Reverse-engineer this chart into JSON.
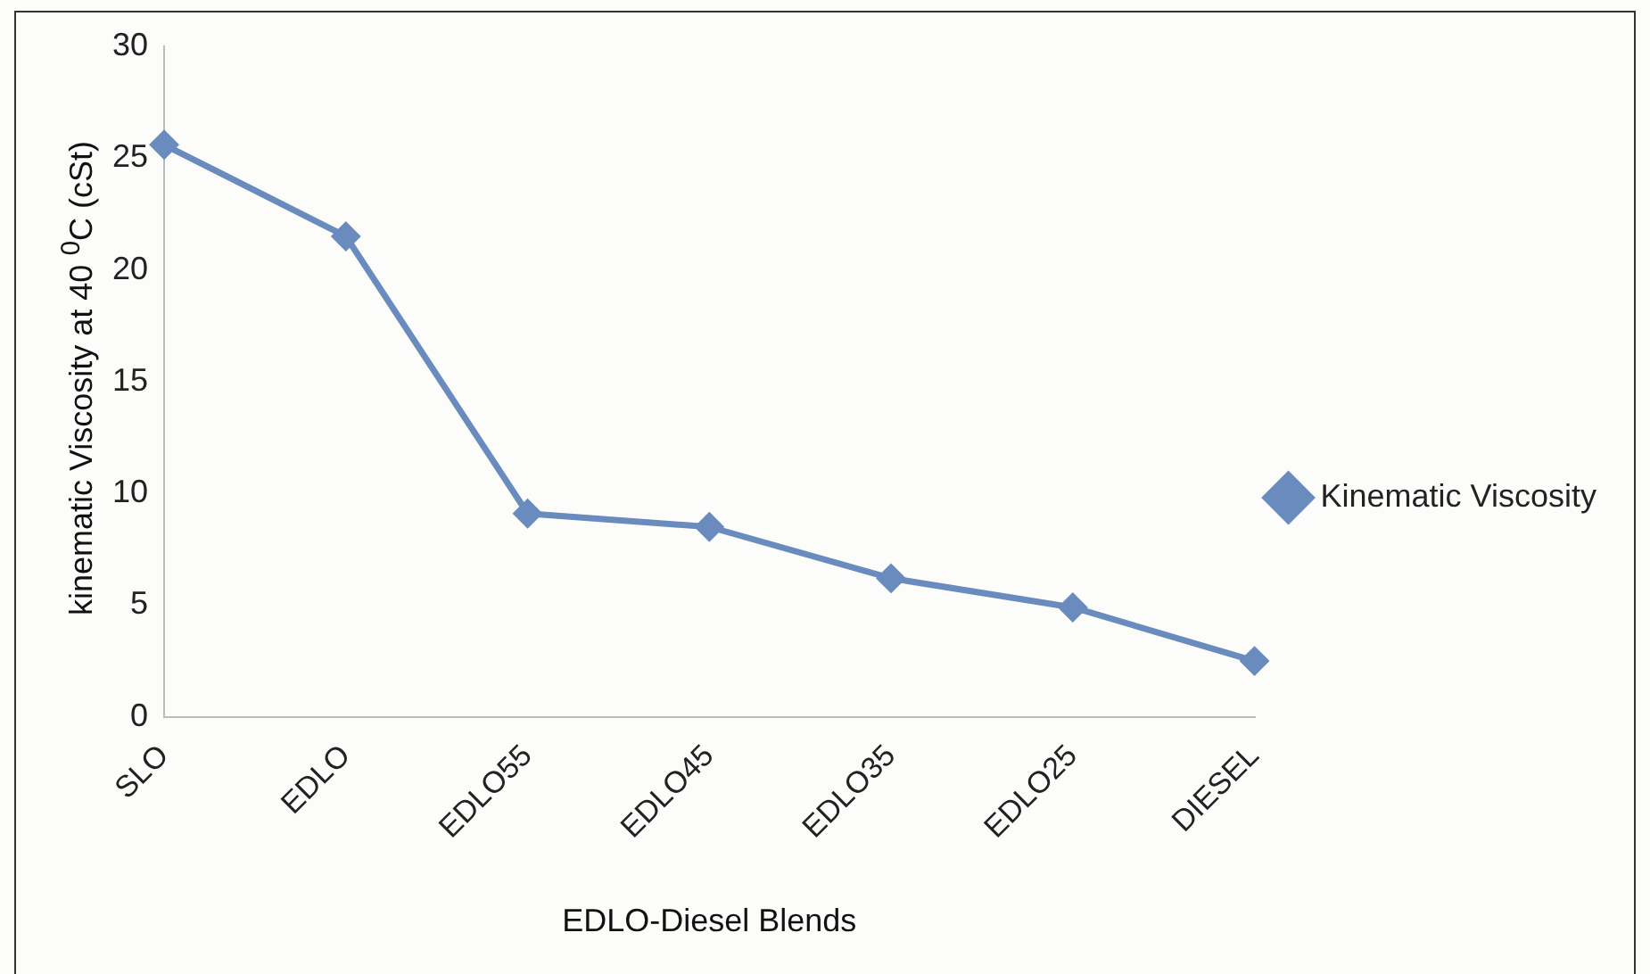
{
  "chart_data": {
    "type": "line",
    "xlabel": "EDLO-Diesel Blends",
    "ylabel": "kinematic Viscosity at 40 $^{0}$C (cSt)",
    "categories": [
      "SLO",
      "EDLO",
      "EDLO55",
      "EDLO45",
      "EDLO35",
      "EDLO25",
      "DIESEL"
    ],
    "series": [
      {
        "name": "Kinematic Viscosity",
        "color": "#6a8bbd",
        "values": [
          25.6,
          21.5,
          9.1,
          8.5,
          6.2,
          4.9,
          2.5
        ]
      }
    ],
    "ylim": [
      0,
      30
    ],
    "yticks": [
      0,
      5,
      10,
      15,
      20,
      25,
      30
    ],
    "grid": false,
    "legend": "right",
    "marker": "diamond",
    "line_style": "solid"
  }
}
